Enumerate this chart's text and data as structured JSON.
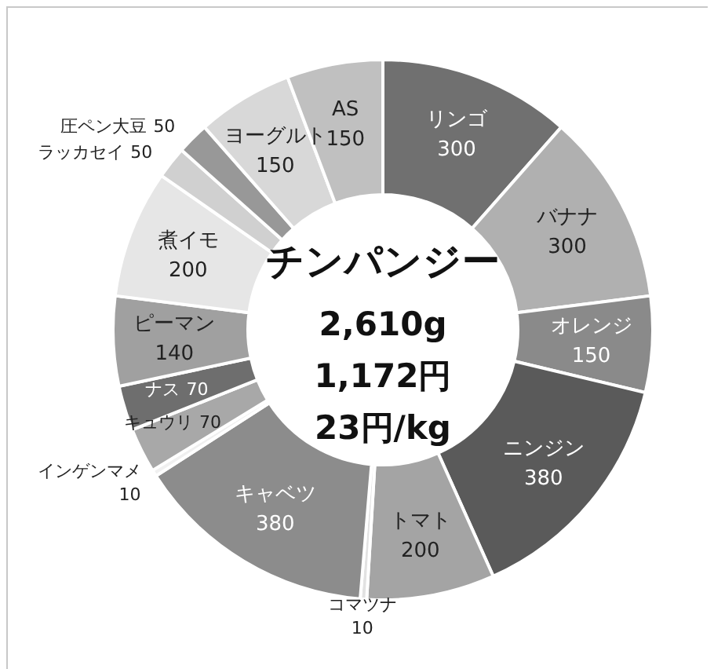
{
  "chart_data": {
    "type": "donut",
    "title": "チンパンジー",
    "annotations": [
      "2,610g",
      "1,172円",
      "23円/kg"
    ],
    "categories": [
      "リンゴ",
      "バナナ",
      "オレンジ",
      "ニンジン",
      "トマト",
      "コマツナ",
      "キャベツ",
      "インゲンマメ",
      "キュウリ",
      "ナス",
      "ピーマン",
      "煮イモ",
      "ラッカセイ",
      "圧ペン大豆",
      "ヨーグルト",
      "AS"
    ],
    "values": [
      300,
      300,
      150,
      380,
      200,
      10,
      380,
      10,
      70,
      70,
      140,
      200,
      50,
      50,
      150,
      150
    ],
    "colors": [
      "#707070",
      "#b0b0b0",
      "#8a8a8a",
      "#5a5a5a",
      "#a4a4a4",
      "#e2e2e2",
      "#8c8c8c",
      "#f0f0f0",
      "#a8a8a8",
      "#6e6e6e",
      "#a0a0a0",
      "#e6e6e6",
      "#d0d0d0",
      "#989898",
      "#d8d8d8",
      "#c0c0c0"
    ],
    "data_labels": true
  }
}
